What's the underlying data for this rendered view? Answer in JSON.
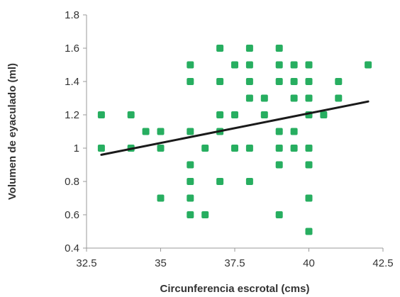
{
  "chart_data": {
    "type": "scatter",
    "title": "",
    "xlabel": "Circunferencia escrotal (cms)",
    "ylabel": "Volumen de eyaculado (ml)",
    "xlim": [
      32.5,
      42.5
    ],
    "ylim": [
      0.4,
      1.8
    ],
    "x_ticks": [
      "32.5",
      "35",
      "37.5",
      "40",
      "42.5"
    ],
    "y_ticks": [
      "0.4",
      "0.6",
      "0.8",
      "1",
      "1.2",
      "1.4",
      "1.6",
      "1.8"
    ],
    "grid": false,
    "legend": "none",
    "marker_color": "#27ae60",
    "trendline_color": "#1a1a1a",
    "trendline": {
      "x": [
        33,
        42
      ],
      "y": [
        0.96,
        1.28
      ]
    },
    "points": [
      {
        "x": 33,
        "y": 1.2
      },
      {
        "x": 33,
        "y": 1.0
      },
      {
        "x": 34,
        "y": 1.2
      },
      {
        "x": 34,
        "y": 1.0
      },
      {
        "x": 34.5,
        "y": 1.1
      },
      {
        "x": 35,
        "y": 1.1
      },
      {
        "x": 35,
        "y": 1.0
      },
      {
        "x": 35,
        "y": 0.7
      },
      {
        "x": 36,
        "y": 1.5
      },
      {
        "x": 36,
        "y": 1.4
      },
      {
        "x": 36,
        "y": 1.1
      },
      {
        "x": 36,
        "y": 0.9
      },
      {
        "x": 36,
        "y": 0.8
      },
      {
        "x": 36,
        "y": 0.7
      },
      {
        "x": 36,
        "y": 0.6
      },
      {
        "x": 36.5,
        "y": 1.0
      },
      {
        "x": 36.5,
        "y": 0.6
      },
      {
        "x": 37,
        "y": 1.6
      },
      {
        "x": 37,
        "y": 1.4
      },
      {
        "x": 37,
        "y": 1.2
      },
      {
        "x": 37,
        "y": 1.1
      },
      {
        "x": 37,
        "y": 0.8
      },
      {
        "x": 37.5,
        "y": 1.5
      },
      {
        "x": 37.5,
        "y": 1.2
      },
      {
        "x": 37.5,
        "y": 1.0
      },
      {
        "x": 38,
        "y": 1.6
      },
      {
        "x": 38,
        "y": 1.5
      },
      {
        "x": 38,
        "y": 1.4
      },
      {
        "x": 38,
        "y": 1.3
      },
      {
        "x": 38,
        "y": 1.0
      },
      {
        "x": 38,
        "y": 0.8
      },
      {
        "x": 38.5,
        "y": 1.3
      },
      {
        "x": 38.5,
        "y": 1.2
      },
      {
        "x": 39,
        "y": 1.6
      },
      {
        "x": 39,
        "y": 1.5
      },
      {
        "x": 39,
        "y": 1.4
      },
      {
        "x": 39,
        "y": 1.1
      },
      {
        "x": 39,
        "y": 1.0
      },
      {
        "x": 39,
        "y": 0.9
      },
      {
        "x": 39,
        "y": 0.6
      },
      {
        "x": 39.5,
        "y": 1.5
      },
      {
        "x": 39.5,
        "y": 1.4
      },
      {
        "x": 39.5,
        "y": 1.3
      },
      {
        "x": 39.5,
        "y": 1.1
      },
      {
        "x": 39.5,
        "y": 1.0
      },
      {
        "x": 40,
        "y": 1.5
      },
      {
        "x": 40,
        "y": 1.4
      },
      {
        "x": 40,
        "y": 1.3
      },
      {
        "x": 40,
        "y": 1.2
      },
      {
        "x": 40,
        "y": 1.0
      },
      {
        "x": 40,
        "y": 0.9
      },
      {
        "x": 40,
        "y": 0.7
      },
      {
        "x": 40,
        "y": 0.5
      },
      {
        "x": 40.5,
        "y": 1.2
      },
      {
        "x": 41,
        "y": 1.4
      },
      {
        "x": 41,
        "y": 1.3
      },
      {
        "x": 42,
        "y": 1.5
      }
    ]
  }
}
